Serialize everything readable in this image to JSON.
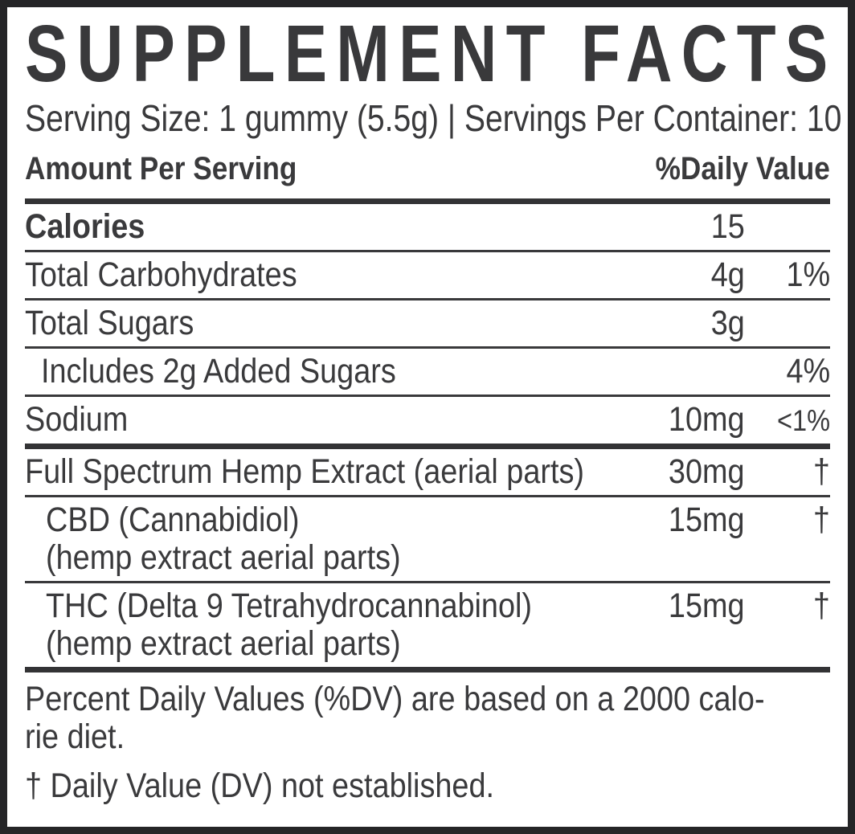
{
  "label": {
    "title": "SUPPLEMENT FACTS",
    "serving_line": "Serving Size: 1 gummy (5.5g) | Servings Per Container: 10",
    "header": {
      "left": "Amount Per Serving",
      "right": "%Daily Value"
    },
    "rows": [
      {
        "name": "Calories",
        "amount": "15",
        "dv": ""
      },
      {
        "name": "Total Carbohydrates",
        "amount": "4g",
        "dv": "1%"
      },
      {
        "name": "Total Sugars",
        "amount": "3g",
        "dv": ""
      },
      {
        "name": "Includes 2g Added Sugars",
        "amount": "",
        "dv": "4%"
      },
      {
        "name": "Sodium",
        "amount": "10mg",
        "dv": "<1%"
      },
      {
        "name": "Full Spectrum Hemp Extract (aerial parts)",
        "amount": "30mg",
        "dv": "†"
      },
      {
        "name": "CBD (Cannabidiol)",
        "name2": "(hemp extract aerial parts)",
        "amount": "15mg",
        "dv": "†"
      },
      {
        "name": "THC (Delta 9 Tetrahydrocannabinol)",
        "name2": "(hemp extract aerial parts)",
        "amount": "15mg",
        "dv": "†"
      }
    ],
    "footer": {
      "line1": "Percent Daily Values (%DV) are based on a 2000 calo-",
      "line2": "rie diet.",
      "dagger_note": "† Daily Value (DV) not established."
    },
    "colors": {
      "text": "#3a3a3c",
      "border": "#252527",
      "background": "#ffffff"
    }
  }
}
